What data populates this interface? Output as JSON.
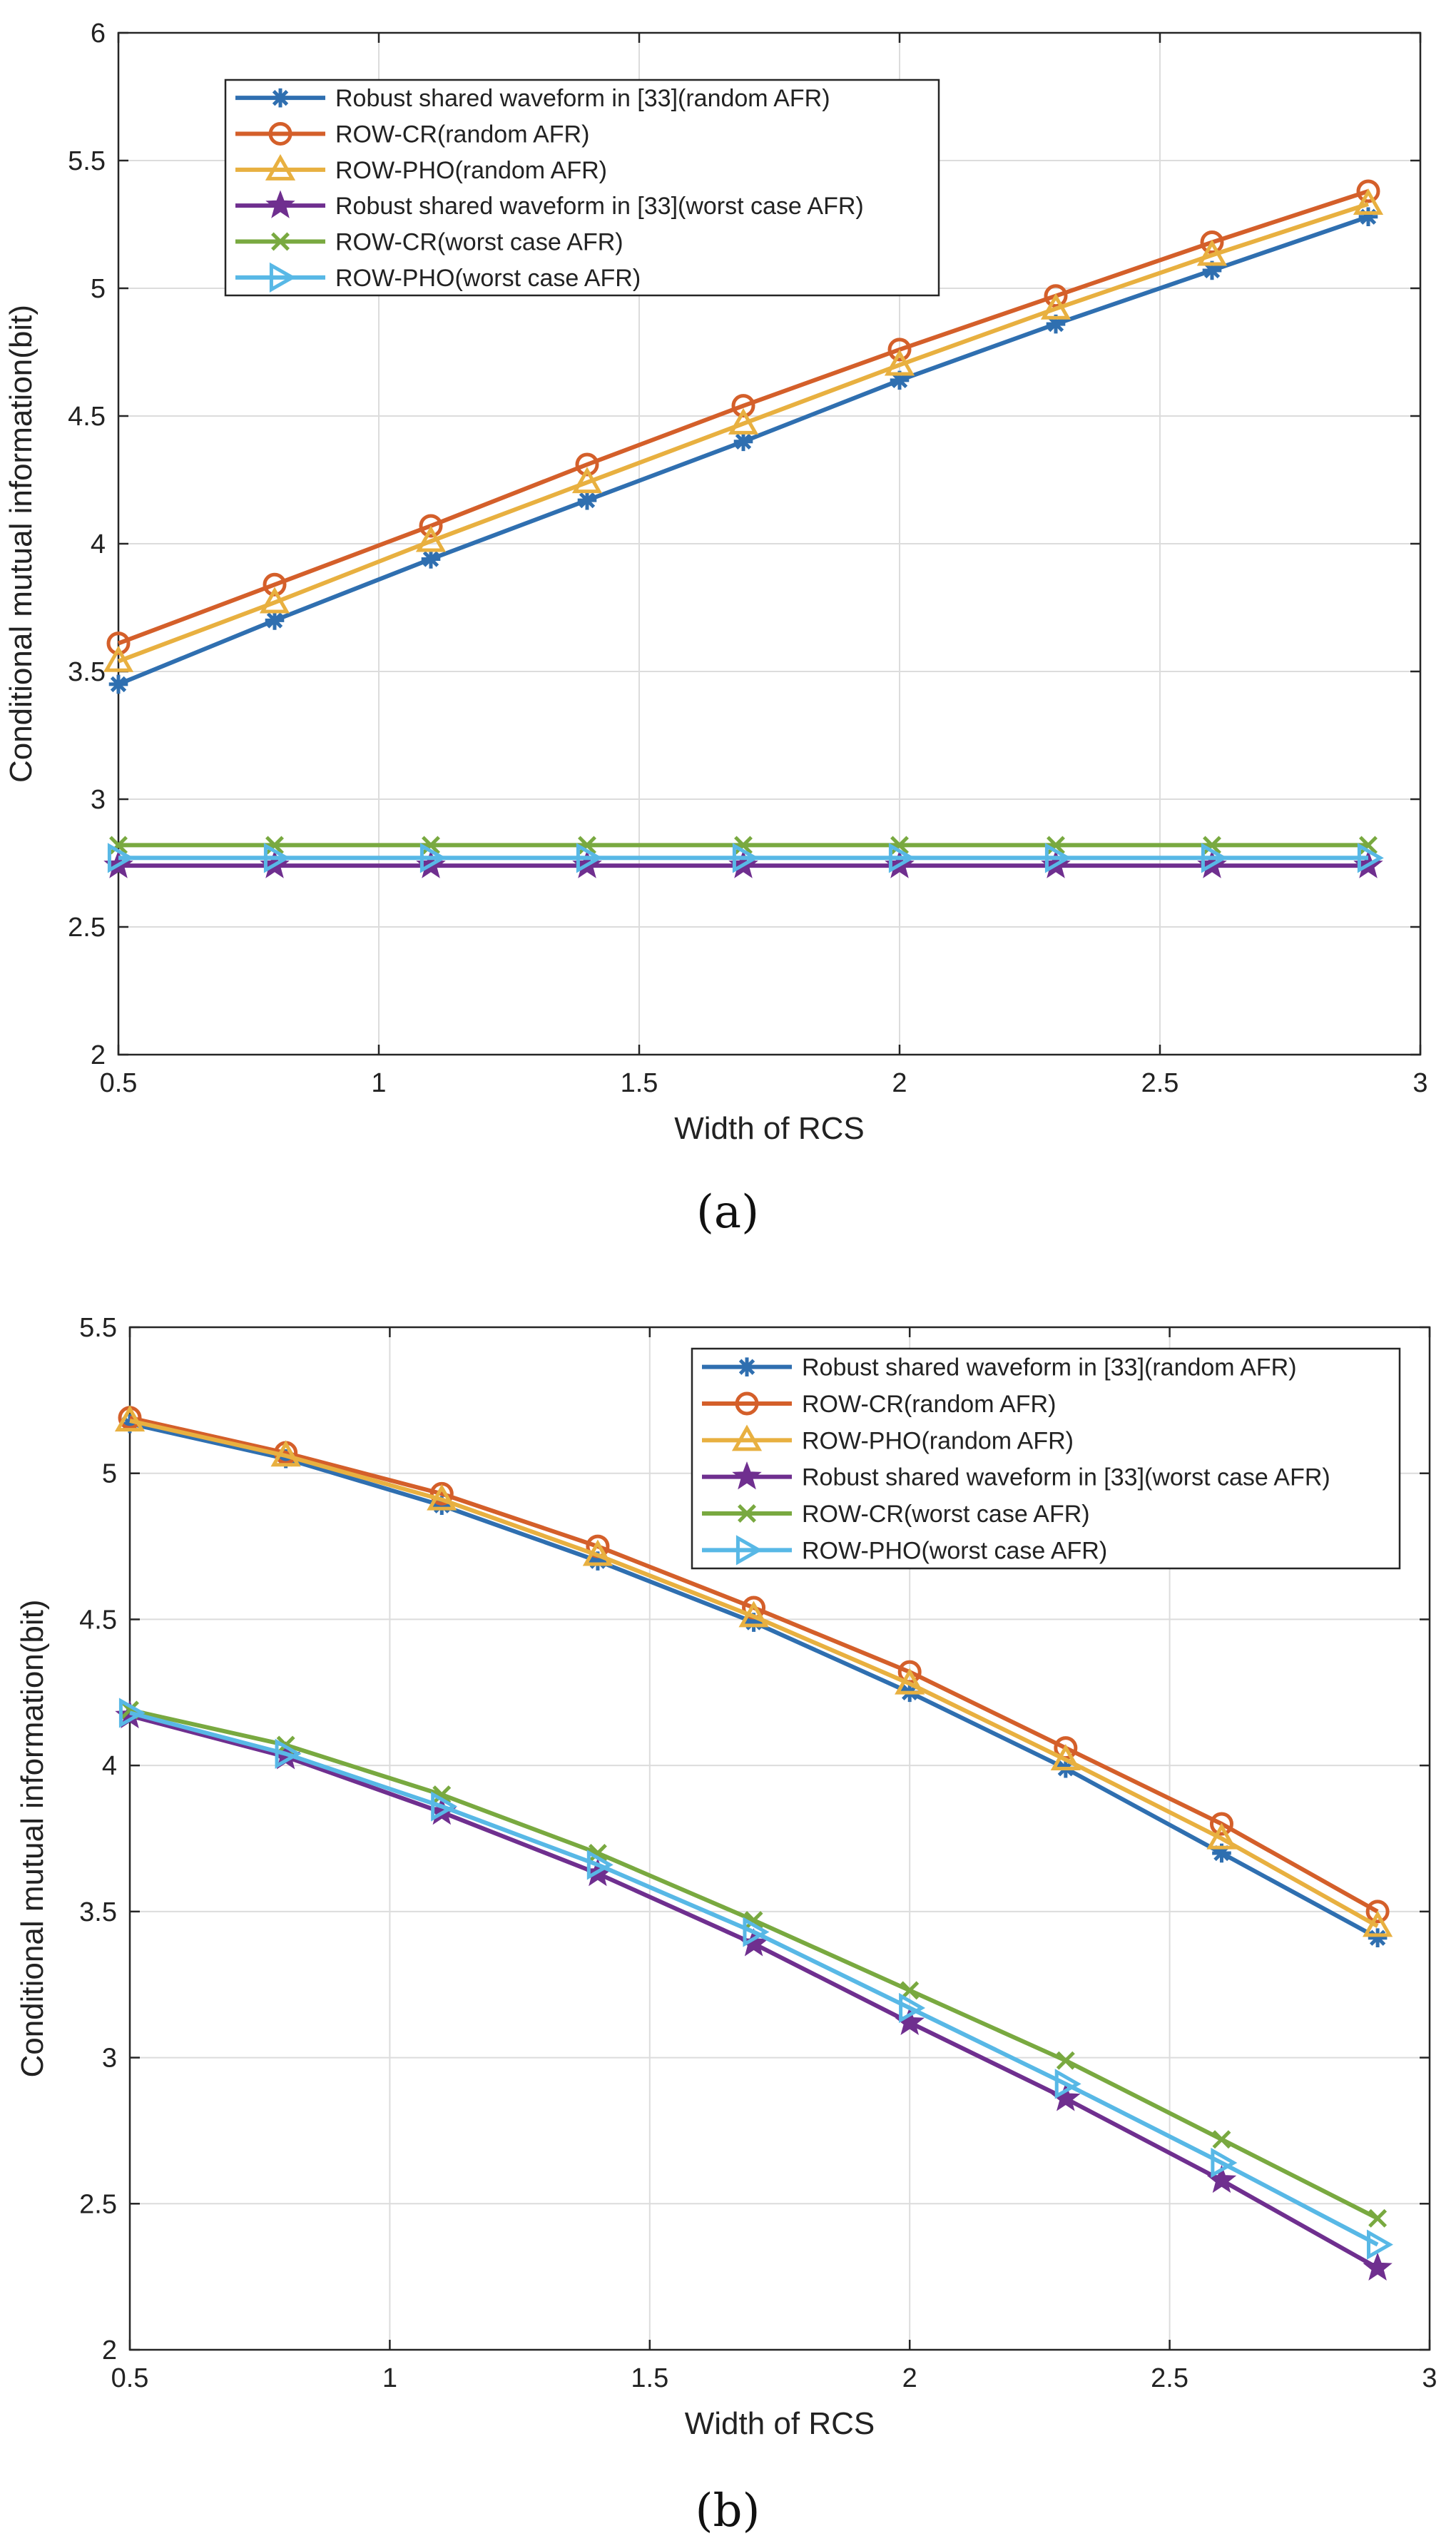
{
  "panel_labels": [
    "(a)",
    "(b)"
  ],
  "chart_data": [
    {
      "type": "line",
      "panel": "(a)",
      "xlabel": "Width of RCS",
      "ylabel": "Conditional mutual information(bit)",
      "xlim": [
        0.5,
        3
      ],
      "ylim": [
        2,
        6
      ],
      "xticks": [
        0.5,
        1,
        1.5,
        2,
        2.5,
        3
      ],
      "yticks": [
        2,
        2.5,
        3,
        3.5,
        4,
        4.5,
        5,
        5.5,
        6
      ],
      "grid": true,
      "legend_position": "top-left",
      "x": [
        0.5,
        0.8,
        1.1,
        1.4,
        1.7,
        2.0,
        2.3,
        2.6,
        2.9
      ],
      "series": [
        {
          "name": "Robust shared waveform in [33](random AFR)",
          "color": "#2f6fb0",
          "marker": "asterisk",
          "values": [
            3.45,
            3.7,
            3.94,
            4.17,
            4.4,
            4.64,
            4.86,
            5.07,
            5.28
          ]
        },
        {
          "name": "ROW-CR(random AFR)",
          "color": "#d45f2a",
          "marker": "circle",
          "values": [
            3.61,
            3.84,
            4.07,
            4.31,
            4.54,
            4.76,
            4.97,
            5.18,
            5.38
          ]
        },
        {
          "name": "ROW-PHO(random AFR)",
          "color": "#e8b040",
          "marker": "triangle",
          "values": [
            3.54,
            3.77,
            4.01,
            4.24,
            4.47,
            4.7,
            4.92,
            5.13,
            5.33
          ]
        },
        {
          "name": "Robust shared waveform in [33](worst case AFR)",
          "color": "#6f2f8f",
          "marker": "star",
          "values": [
            2.74,
            2.74,
            2.74,
            2.74,
            2.74,
            2.74,
            2.74,
            2.74,
            2.74
          ]
        },
        {
          "name": "ROW-CR(worst case AFR)",
          "color": "#79a940",
          "marker": "x",
          "values": [
            2.82,
            2.82,
            2.82,
            2.82,
            2.82,
            2.82,
            2.82,
            2.82,
            2.82
          ]
        },
        {
          "name": "ROW-PHO(worst case AFR)",
          "color": "#58b8e6",
          "marker": "triangle-right",
          "values": [
            2.77,
            2.77,
            2.77,
            2.77,
            2.77,
            2.77,
            2.77,
            2.77,
            2.77
          ]
        }
      ]
    },
    {
      "type": "line",
      "panel": "(b)",
      "xlabel": "Width of RCS",
      "ylabel": "Conditional mutual information(bit)",
      "xlim": [
        0.5,
        3
      ],
      "ylim": [
        2,
        5.5
      ],
      "xticks": [
        0.5,
        1,
        1.5,
        2,
        2.5,
        3
      ],
      "yticks": [
        2,
        2.5,
        3,
        3.5,
        4,
        4.5,
        5,
        5.5
      ],
      "grid": true,
      "legend_position": "top-right",
      "x": [
        0.5,
        0.8,
        1.1,
        1.4,
        1.7,
        2.0,
        2.3,
        2.6,
        2.9
      ],
      "series": [
        {
          "name": "Robust shared waveform in [33](random AFR)",
          "color": "#2f6fb0",
          "marker": "asterisk",
          "values": [
            5.17,
            5.05,
            4.89,
            4.7,
            4.49,
            4.25,
            3.99,
            3.7,
            3.41
          ]
        },
        {
          "name": "ROW-CR(random AFR)",
          "color": "#d45f2a",
          "marker": "circle",
          "values": [
            5.19,
            5.07,
            4.93,
            4.75,
            4.54,
            4.32,
            4.06,
            3.8,
            3.5
          ]
        },
        {
          "name": "ROW-PHO(random AFR)",
          "color": "#e8b040",
          "marker": "triangle",
          "values": [
            5.18,
            5.06,
            4.91,
            4.72,
            4.51,
            4.28,
            4.02,
            3.75,
            3.45
          ]
        },
        {
          "name": "Robust shared waveform in [33](worst case AFR)",
          "color": "#6f2f8f",
          "marker": "star",
          "values": [
            4.17,
            4.03,
            3.84,
            3.63,
            3.39,
            3.12,
            2.86,
            2.58,
            2.28
          ]
        },
        {
          "name": "ROW-CR(worst case AFR)",
          "color": "#79a940",
          "marker": "x",
          "values": [
            4.19,
            4.07,
            3.9,
            3.7,
            3.47,
            3.23,
            2.99,
            2.72,
            2.45
          ]
        },
        {
          "name": "ROW-PHO(worst case AFR)",
          "color": "#58b8e6",
          "marker": "triangle-right",
          "values": [
            4.18,
            4.04,
            3.86,
            3.66,
            3.43,
            3.17,
            2.91,
            2.64,
            2.36
          ]
        }
      ]
    }
  ]
}
